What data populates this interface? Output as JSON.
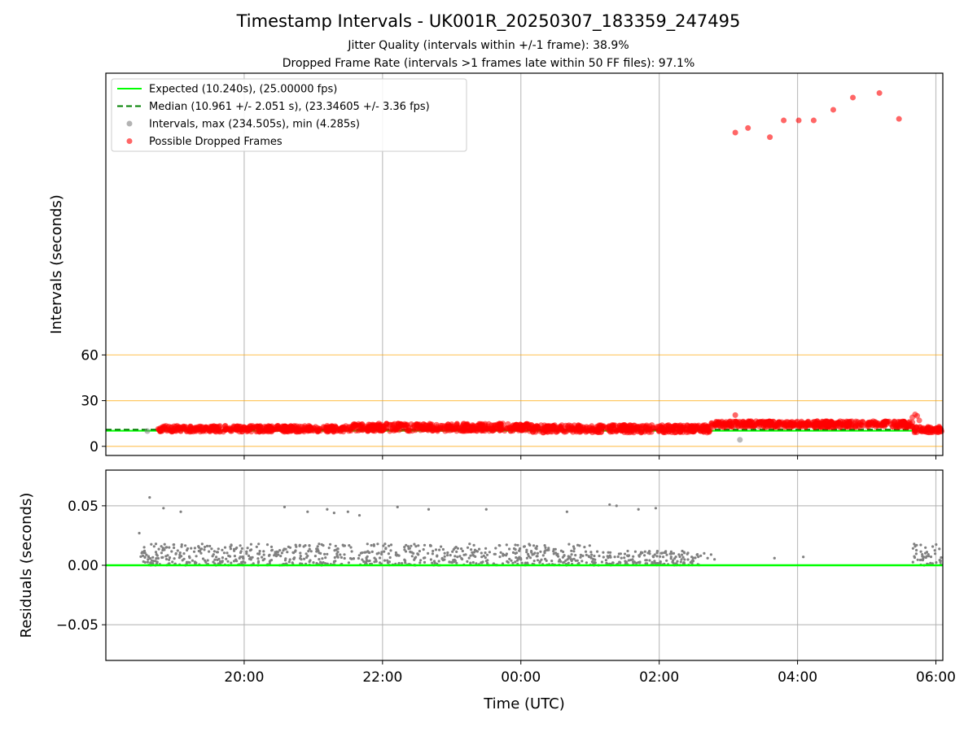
{
  "title": "Timestamp Intervals - UK001R_20250307_183359_247495",
  "subtitle1": "Jitter Quality (intervals within +/-1 frame): 38.9%",
  "subtitle2": "Dropped Frame Rate (intervals >1 frames late within 50 FF files): 97.1%",
  "colors": {
    "expected": "#00ff00",
    "median": "#008000",
    "intervals": "#808080",
    "dropped": "#ff0000",
    "threshold": "#ffa500",
    "grid": "#b0b0b0"
  },
  "chart_data": [
    {
      "type": "scatter",
      "ylabel": "Intervals (seconds)",
      "xlim_hours": [
        18.0,
        30.1
      ],
      "ylim": [
        -6,
        245
      ],
      "yticks": [
        0,
        30,
        60
      ],
      "ytick_labels": [
        "0",
        "30",
        "60"
      ],
      "x_grid_hours": [
        20,
        22,
        24,
        26,
        28,
        30
      ],
      "threshold_lines": [
        0,
        30,
        60
      ],
      "grid": true,
      "legend_position": "upper left",
      "legend": [
        {
          "key": "expected",
          "label": "Expected (10.240s), (25.00000 fps)"
        },
        {
          "key": "median",
          "label": "Median (10.961 +/- 2.051 s), (23.34605 +/- 3.36 fps)"
        },
        {
          "key": "intervals",
          "label": "Intervals, max (234.505s), min (4.285s)"
        },
        {
          "key": "dropped",
          "label": "Possible Dropped Frames"
        }
      ],
      "expected_value": 10.24,
      "median_value": 10.961,
      "dropped_outliers": [
        {
          "x": "03:06",
          "y": 206
        },
        {
          "x": "03:17",
          "y": 209
        },
        {
          "x": "03:36",
          "y": 203
        },
        {
          "x": "03:48",
          "y": 214
        },
        {
          "x": "04:01",
          "y": 214
        },
        {
          "x": "04:14",
          "y": 214
        },
        {
          "x": "04:31",
          "y": 221
        },
        {
          "x": "04:48",
          "y": 229
        },
        {
          "x": "05:11",
          "y": 232
        },
        {
          "x": "05:28",
          "y": 215
        }
      ],
      "gray_outliers": [
        {
          "x": "18:36",
          "y": 10
        },
        {
          "x": "03:10",
          "y": 4.3
        }
      ],
      "band_segments": [
        {
          "x_start": "18:45",
          "x_end": "21:30",
          "y_center": 11.5,
          "spread": 2.0
        },
        {
          "x_start": "21:30",
          "x_end": "00:10",
          "y_center": 12.5,
          "spread": 2.5
        },
        {
          "x_start": "00:10",
          "x_end": "02:45",
          "y_center": 11.5,
          "spread": 2.5
        },
        {
          "x_start": "02:45",
          "x_end": "05:40",
          "y_center": 14.5,
          "spread": 2.0
        },
        {
          "x_start": "05:40",
          "x_end": "06:05",
          "y_center": 11.0,
          "spread": 2.0
        }
      ]
    },
    {
      "type": "scatter",
      "xlabel": "Time (UTC)",
      "ylabel": "Residuals (seconds)",
      "xlim_hours": [
        18.0,
        30.1
      ],
      "ylim": [
        -0.08,
        0.08
      ],
      "yticks": [
        -0.05,
        0.0,
        0.05
      ],
      "ytick_labels": [
        "−0.05",
        "0.00",
        "0.05"
      ],
      "xtick_labels": [
        "20:00",
        "22:00",
        "00:00",
        "02:00",
        "04:00",
        "06:00"
      ],
      "zero_line": 0.0,
      "grid": true,
      "dense_band": [
        {
          "x_start": "18:30",
          "x_end": "01:00",
          "y_low": 0.0,
          "y_high": 0.018
        },
        {
          "x_start": "01:00",
          "x_end": "02:35",
          "y_low": 0.0,
          "y_high": 0.012
        },
        {
          "x_start": "05:40",
          "x_end": "06:05",
          "y_low": 0.0,
          "y_high": 0.018
        }
      ],
      "outliers": [
        {
          "x": "18:29",
          "y": 0.027
        },
        {
          "x": "18:38",
          "y": 0.057
        },
        {
          "x": "18:50",
          "y": 0.048
        },
        {
          "x": "19:05",
          "y": 0.045
        },
        {
          "x": "20:35",
          "y": 0.049
        },
        {
          "x": "20:55",
          "y": 0.045
        },
        {
          "x": "21:12",
          "y": 0.047
        },
        {
          "x": "21:18",
          "y": 0.044
        },
        {
          "x": "21:30",
          "y": 0.045
        },
        {
          "x": "21:40",
          "y": 0.042
        },
        {
          "x": "22:13",
          "y": 0.049
        },
        {
          "x": "22:40",
          "y": 0.047
        },
        {
          "x": "23:30",
          "y": 0.047
        },
        {
          "x": "00:40",
          "y": 0.045
        },
        {
          "x": "01:17",
          "y": 0.051
        },
        {
          "x": "01:23",
          "y": 0.05
        },
        {
          "x": "01:42",
          "y": 0.047
        },
        {
          "x": "01:57",
          "y": 0.048
        },
        {
          "x": "02:20",
          "y": 0.012
        },
        {
          "x": "03:40",
          "y": 0.006
        },
        {
          "x": "04:05",
          "y": 0.007
        }
      ]
    }
  ]
}
